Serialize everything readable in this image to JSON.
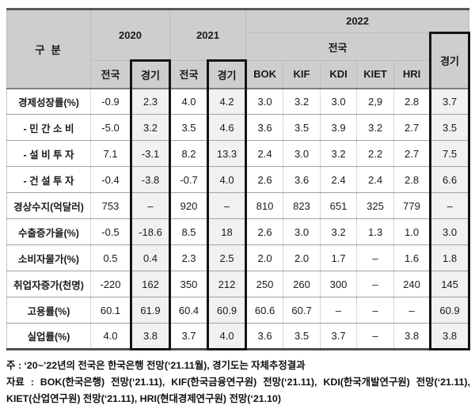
{
  "table": {
    "header": {
      "gubun": "구 분",
      "y2020": "2020",
      "y2021": "2021",
      "y2022": "2022",
      "nation2022": "전국",
      "gyeonggi2022": "경기",
      "sub2020": {
        "nation": "전국",
        "gyeonggi": "경기"
      },
      "sub2021": {
        "nation": "전국",
        "gyeonggi": "경기"
      },
      "orgs2022": {
        "bok": "BOK",
        "kif": "KIF",
        "kdi": "KDI",
        "kiet": "KIET",
        "hri": "HRI"
      }
    },
    "rows": [
      {
        "label": "경제성장률(%)",
        "values": [
          "-0.9",
          "2.3",
          "4.0",
          "4.2",
          "3.0",
          "3.2",
          "3.0",
          "2,9",
          "2.8",
          "3.7"
        ]
      },
      {
        "label": "- 민 간 소 비",
        "values": [
          "-5.0",
          "3.2",
          "3.5",
          "4.6",
          "3.6",
          "3.5",
          "3.9",
          "3.2",
          "2.7",
          "3.5"
        ]
      },
      {
        "label": "- 설 비 투 자",
        "values": [
          "7.1",
          "-3.1",
          "8.2",
          "13.3",
          "2.4",
          "3.0",
          "3.2",
          "2.2",
          "2.7",
          "7.5"
        ]
      },
      {
        "label": "- 건 설 투 자",
        "values": [
          "-0.4",
          "-3.8",
          "-0.7",
          "4.0",
          "2.6",
          "3.6",
          "2.4",
          "2.4",
          "2.8",
          "6.6"
        ]
      },
      {
        "label": "경상수지(억달러)",
        "values": [
          "753",
          "–",
          "920",
          "–",
          "810",
          "823",
          "651",
          "325",
          "779",
          "–"
        ]
      },
      {
        "label": "수출증가율(%)",
        "values": [
          "-0.5",
          "-18.6",
          "8.5",
          "18",
          "2.6",
          "3.0",
          "3.2",
          "1.3",
          "1.0",
          "3.0"
        ]
      },
      {
        "label": "소비자물가(%)",
        "values": [
          "0.5",
          "0.4",
          "2.3",
          "2.5",
          "2.0",
          "2.0",
          "1.7",
          "–",
          "1.6",
          "1.8"
        ]
      },
      {
        "label": "취업자증가(천명)",
        "values": [
          "-220",
          "162",
          "350",
          "212",
          "250",
          "260",
          "300",
          "–",
          "240",
          "145"
        ]
      },
      {
        "label": "고용률(%)",
        "values": [
          "60.1",
          "61.9",
          "60.4",
          "60.9",
          "60.6",
          "60.7",
          "–",
          "–",
          "–",
          "60.9"
        ]
      },
      {
        "label": "실업률(%)",
        "values": [
          "4.0",
          "3.8",
          "3.7",
          "4.0",
          "3.6",
          "3.5",
          "3.7",
          "–",
          "3.8",
          "3.8"
        ]
      }
    ]
  },
  "notes": {
    "note1": "주 : ‘20~’22년의 전국은 한국은행 전망(‘21.11월), 경기도는 자체추정결과",
    "note2": "자료 : BOK(한국은행) 전망(‘21.11), KIF(한국금융연구원) 전망(‘21.11), KDI(한국개발연구원) 전망(‘21.11), KIET(산업연구원) 전망(‘21.11), HRI(현대경제연구원) 전망(‘21.10)"
  }
}
